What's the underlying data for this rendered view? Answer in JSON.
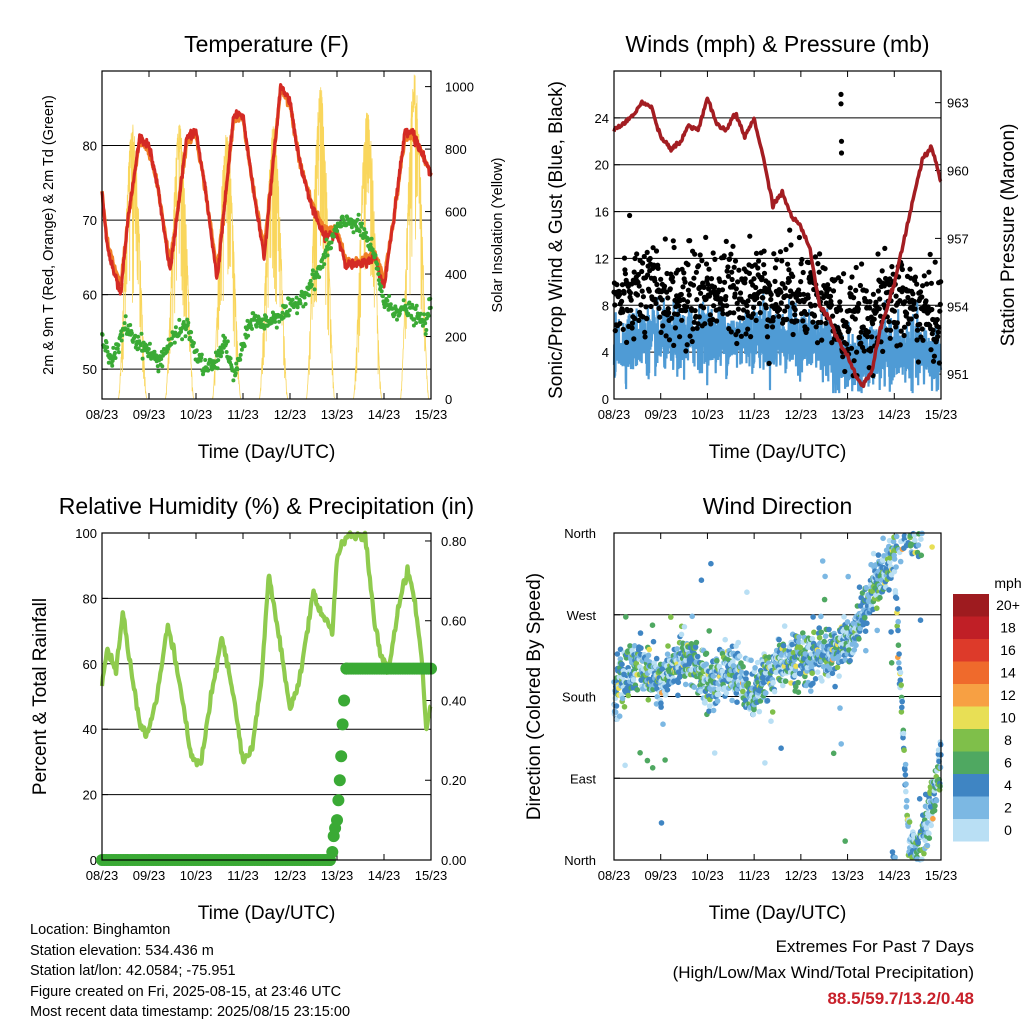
{
  "chart_data": [
    {
      "type": "line",
      "title": "Temperature (F)",
      "xlabel": "Time (Day/UTC)",
      "ylabel": "2m & 9m T (Red, Orange) & 2m Td (Green)",
      "y2label": "Solar Insolation (Yellow)",
      "x_ticks": [
        "08/23",
        "09/23",
        "10/23",
        "11/23",
        "12/23",
        "13/23",
        "14/23",
        "15/23"
      ],
      "xlim": [
        0,
        7
      ],
      "ylim": [
        46,
        90
      ],
      "y_ticks": [
        50,
        60,
        70,
        80
      ],
      "y2lim": [
        0,
        1050
      ],
      "y2_ticks": [
        0,
        200,
        400,
        600,
        800,
        1000
      ],
      "grid": true,
      "series": [
        {
          "name": "2m T",
          "color": "#d42a24",
          "x": [
            0,
            0.1,
            0.2,
            0.4,
            0.55,
            0.8,
            1.0,
            1.2,
            1.45,
            1.8,
            2.0,
            2.2,
            2.45,
            2.8,
            3.0,
            3.2,
            3.45,
            3.8,
            4.0,
            4.2,
            4.45,
            4.7,
            5.0,
            5.2,
            5.5,
            5.8,
            6.0,
            6.2,
            6.45,
            6.6,
            6.8,
            7.0
          ],
          "y": [
            74,
            67,
            64,
            60,
            70,
            81,
            80,
            74,
            63,
            81,
            82,
            74,
            62,
            84,
            84,
            75,
            65,
            88,
            86,
            78,
            72,
            68,
            68,
            64,
            64,
            65,
            61,
            70,
            82,
            82,
            79,
            76
          ]
        },
        {
          "name": "9m T",
          "color": "#f07f26",
          "x": [
            0,
            0.1,
            0.2,
            0.4,
            0.55,
            0.8,
            1.0,
            1.2,
            1.45,
            1.8,
            2.0,
            2.2,
            2.45,
            2.8,
            3.0,
            3.2,
            3.45,
            3.8,
            4.0,
            4.2,
            4.45,
            4.7,
            5.0,
            5.2,
            5.5,
            5.8,
            6.0,
            6.2,
            6.45,
            6.6,
            6.8,
            7.0
          ],
          "y": [
            73.5,
            67.5,
            65,
            61,
            70,
            80.5,
            79.5,
            74,
            64,
            80.5,
            81.5,
            74,
            63,
            83.5,
            83.5,
            75,
            66,
            87.5,
            85.5,
            78,
            72.5,
            69,
            68.5,
            64.5,
            64.5,
            65.5,
            62,
            70,
            81.5,
            81.5,
            79,
            76
          ]
        },
        {
          "name": "2m Td",
          "color": "#3aaa35",
          "x": [
            0,
            0.2,
            0.35,
            0.5,
            0.7,
            0.9,
            1.2,
            1.5,
            1.8,
            2.0,
            2.2,
            2.45,
            2.6,
            2.8,
            3.0,
            3.2,
            3.4,
            3.7,
            4.0,
            4.3,
            4.6,
            4.8,
            5.0,
            5.3,
            5.6,
            5.8,
            6.0,
            6.2,
            6.5,
            6.7,
            6.9,
            7.0
          ],
          "y": [
            55,
            51,
            53,
            56,
            54,
            53,
            51,
            54,
            56,
            52,
            50,
            51,
            54,
            49,
            53,
            57,
            56,
            57,
            58,
            60,
            63,
            66,
            69,
            70,
            68,
            65,
            59,
            58,
            58,
            57,
            56,
            59
          ]
        },
        {
          "name": "Solar Insolation",
          "color": "#f9d65c",
          "axis": "y2",
          "peaks_x": [
            0.65,
            1.65,
            2.65,
            3.65,
            4.65,
            5.65,
            6.65
          ],
          "peaks_y": [
            880,
            880,
            850,
            880,
            1000,
            940,
            1040
          ]
        }
      ]
    },
    {
      "type": "scatter",
      "title": "Winds (mph) & Pressure (mb)",
      "xlabel": "Time (Day/UTC)",
      "ylabel": "Sonic/Prop Wind & Gust (Blue, Black)",
      "y2label": "Station Pressure (Maroon)",
      "x_ticks": [
        "08/23",
        "09/23",
        "10/23",
        "11/23",
        "12/23",
        "13/23",
        "14/23",
        "15/23"
      ],
      "xlim": [
        0,
        7
      ],
      "ylim": [
        0,
        28
      ],
      "y_ticks": [
        0,
        4,
        8,
        12,
        16,
        20,
        24
      ],
      "y2lim": [
        949.9,
        964.4
      ],
      "y2_ticks": [
        951,
        954,
        957,
        960,
        963
      ],
      "grid": true,
      "series": [
        {
          "name": "Wind",
          "color": "#4f9bd5",
          "mean_x": [
            0,
            0.5,
            1.0,
            1.5,
            2.0,
            2.5,
            3.0,
            3.5,
            4.0,
            4.5,
            5.0,
            5.5,
            6.0,
            6.5,
            7.0
          ],
          "mean_y": [
            4.5,
            5,
            5,
            5,
            5.5,
            5,
            5.5,
            5,
            5,
            4.5,
            3,
            3.5,
            4,
            4,
            3.5
          ]
        },
        {
          "name": "Gust",
          "color": "#000000",
          "mean_x": [
            0,
            0.5,
            1.0,
            1.5,
            2.0,
            2.5,
            3.0,
            3.5,
            4.0,
            4.5,
            5.0,
            5.5,
            6.0,
            6.5,
            7.0
          ],
          "mean_y": [
            7.5,
            9,
            9,
            8.5,
            9.5,
            9,
            9.5,
            9,
            9.5,
            8.5,
            6,
            7,
            8.5,
            8,
            6.5
          ]
        },
        {
          "name": "Station Pressure",
          "color": "#a31d22",
          "x": [
            0,
            0.3,
            0.6,
            0.8,
            1.0,
            1.2,
            1.4,
            1.6,
            1.8,
            2.0,
            2.2,
            2.4,
            2.6,
            2.8,
            3.0,
            3.2,
            3.4,
            3.6,
            3.8,
            4.0,
            4.2,
            4.4,
            4.6,
            4.8,
            5.0,
            5.1,
            5.3,
            5.5,
            5.7,
            6.0,
            6.3,
            6.6,
            6.8,
            7.0
          ],
          "y": [
            961.8,
            962.2,
            963.0,
            962.8,
            961.5,
            961.0,
            961.2,
            962.0,
            961.8,
            963.2,
            962.0,
            961.8,
            962.5,
            961.5,
            962.3,
            960.5,
            958.5,
            959.0,
            958.0,
            957.5,
            956.5,
            954.0,
            953.5,
            952.5,
            951.8,
            951.3,
            950.5,
            951.0,
            953.0,
            955.0,
            957.8,
            960.5,
            961.0,
            959.5
          ]
        }
      ]
    },
    {
      "type": "line",
      "title": "Relative Humidity (%) & Precipitation (in)",
      "xlabel": "Time (Day/UTC)",
      "ylabel": "Percent & Total Rainfall",
      "x_ticks": [
        "08/23",
        "09/23",
        "10/23",
        "11/23",
        "12/23",
        "13/23",
        "14/23",
        "15/23"
      ],
      "xlim": [
        0,
        7
      ],
      "ylim": [
        0,
        100
      ],
      "y_ticks": [
        0,
        20,
        40,
        60,
        80,
        100
      ],
      "y2lim": [
        0,
        0.82
      ],
      "y2_ticks": [
        "0.00",
        "0.20",
        "0.40",
        "0.60",
        "0.80"
      ],
      "grid": true,
      "series": [
        {
          "name": "Relative Humidity",
          "color": "#8fcb4e",
          "x": [
            0,
            0.1,
            0.3,
            0.45,
            0.6,
            0.8,
            0.95,
            1.15,
            1.4,
            1.6,
            1.9,
            2.1,
            2.3,
            2.55,
            2.8,
            3.0,
            3.2,
            3.4,
            3.55,
            3.85,
            4.0,
            4.2,
            4.5,
            4.65,
            4.9,
            5.0,
            5.1,
            5.3,
            5.6,
            5.8,
            5.95,
            6.1,
            6.3,
            6.5,
            6.65,
            6.8,
            6.9,
            7.0
          ],
          "y": [
            54,
            64,
            58,
            76,
            60,
            42,
            38,
            48,
            72,
            58,
            32,
            29,
            48,
            68,
            50,
            30,
            34,
            56,
            88,
            60,
            46,
            55,
            82,
            76,
            70,
            92,
            97,
            99,
            99,
            72,
            62,
            58,
            77,
            89,
            80,
            62,
            40,
            48
          ]
        },
        {
          "name": "Total Rainfall",
          "color": "#3aaa35",
          "x": [
            0,
            1,
            2,
            3,
            4,
            4.85,
            4.9,
            4.93,
            4.96,
            5.0,
            5.03,
            5.06,
            5.09,
            5.12,
            5.15,
            5.2,
            6,
            7
          ],
          "y": [
            0,
            0,
            0,
            0,
            0,
            0,
            0.02,
            0.06,
            0.08,
            0.1,
            0.15,
            0.2,
            0.26,
            0.34,
            0.4,
            0.48,
            0.48,
            0.48
          ]
        }
      ]
    },
    {
      "type": "scatter",
      "title": "Wind Direction",
      "xlabel": "Time (Day/UTC)",
      "ylabel": "Direction (Colored By Speed)",
      "x_ticks": [
        "08/23",
        "09/23",
        "10/23",
        "11/23",
        "12/23",
        "13/23",
        "14/23",
        "15/23"
      ],
      "xlim": [
        0,
        7
      ],
      "y_ticks": [
        "North",
        "East",
        "South",
        "West",
        "North"
      ],
      "ylim": [
        0,
        360
      ],
      "grid": true,
      "legend_title": "mph",
      "legend_labels": [
        "20+",
        "18",
        "16",
        "14",
        "12",
        "10",
        "8",
        "6",
        "4",
        "2",
        "0"
      ],
      "legend_colors": [
        "#9e1b1f",
        "#c01f26",
        "#dd3a2a",
        "#ef6a2c",
        "#f7a043",
        "#e8df55",
        "#7fbf4a",
        "#4fa861",
        "#3f85c3",
        "#7cb8e3",
        "#b9dff4"
      ],
      "series": [
        {
          "name": "direction",
          "mean_x": [
            0,
            0.5,
            1.0,
            1.5,
            2.0,
            2.5,
            3.0,
            3.5,
            4.0,
            4.5,
            5.0,
            5.5,
            5.8,
            6.0,
            6.3,
            6.5,
            6.8,
            7.0
          ],
          "mean_y": [
            180,
            215,
            190,
            225,
            190,
            210,
            185,
            215,
            220,
            225,
            240,
            290,
            320,
            330,
            20,
            10,
            60,
            110
          ]
        }
      ]
    }
  ],
  "info": {
    "location": "Location: Binghamton",
    "elevation": "Station elevation: 534.436 m",
    "latlon": "Station lat/lon: 42.0584; -75.951",
    "created": "Figure created on Fri, 2025-08-15, at 23:46 UTC",
    "recent": "Most recent data timestamp: 2025/08/15 23:15:00"
  },
  "extremes": {
    "title": "Extremes For Past 7 Days",
    "subtitle": "(High/Low/Max Wind/Total Precipitation)",
    "values": "88.5/59.7/13.2/0.48"
  }
}
